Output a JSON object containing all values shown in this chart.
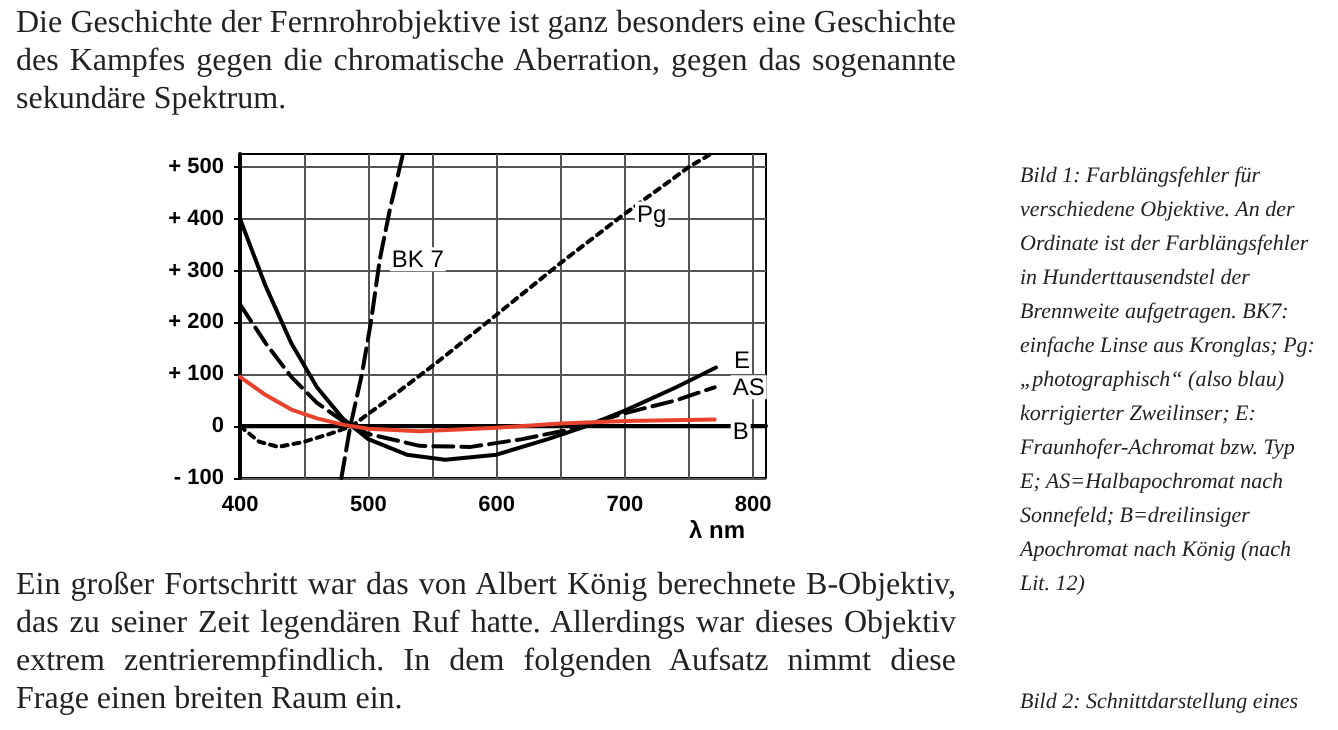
{
  "chart_data": {
    "type": "line",
    "xlabel": "λ nm",
    "xlim": [
      400,
      810
    ],
    "ylim": [
      -100,
      525
    ],
    "xticks": [
      400,
      {
        "value": 450,
        "label": null
      },
      500,
      {
        "value": 550,
        "label": null
      },
      600,
      {
        "value": 650,
        "label": null
      },
      700,
      {
        "value": 750,
        "label": null
      },
      800
    ],
    "yticks": [
      {
        "value": -100,
        "label": "- 100"
      },
      0,
      {
        "value": 100,
        "label": "+ 100"
      },
      {
        "value": 200,
        "label": "+ 200"
      },
      {
        "value": 300,
        "label": "+ 300"
      },
      {
        "value": 400,
        "label": "+ 400"
      },
      {
        "value": 500,
        "label": "+ 500"
      }
    ],
    "grid": true,
    "legend": false,
    "marker": "none",
    "series": [
      {
        "name": "BK 7",
        "color": "#000000",
        "line_style": "dashed",
        "x": [
          479,
          486,
          495,
          502,
          509,
          517,
          527
        ],
        "values": [
          -100,
          0,
          100,
          200,
          322,
          420,
          525
        ]
      },
      {
        "name": "Pg",
        "color": "#000000",
        "line_style": "dotted",
        "x": [
          400,
          415,
          430,
          450,
          470,
          487,
          520,
          552,
          600,
          650,
          700,
          750,
          767
        ],
        "values": [
          0,
          -30,
          -40,
          -30,
          -15,
          0,
          60,
          120,
          215,
          315,
          410,
          500,
          525
        ]
      },
      {
        "name": "E",
        "color": "#000000",
        "line_style": "solid",
        "x": [
          400,
          420,
          440,
          460,
          480,
          500,
          530,
          560,
          600,
          640,
          670,
          700,
          740,
          771
        ],
        "values": [
          400,
          270,
          160,
          75,
          15,
          -25,
          -55,
          -65,
          -55,
          -25,
          0,
          30,
          75,
          113
        ]
      },
      {
        "name": "AS",
        "color": "#000000",
        "line_style": "dashed",
        "x": [
          400,
          420,
          440,
          460,
          480,
          500,
          540,
          580,
          620,
          660,
          700,
          740,
          770
        ],
        "values": [
          235,
          160,
          95,
          45,
          10,
          -15,
          -38,
          -40,
          -25,
          -5,
          25,
          50,
          75
        ]
      },
      {
        "name": "B",
        "color": "#e8412c",
        "line_style": "solid",
        "x": [
          400,
          420,
          440,
          460,
          480,
          500,
          540,
          600,
          650,
          700,
          770
        ],
        "values": [
          95,
          60,
          32,
          15,
          3,
          -5,
          -10,
          -3,
          5,
          10,
          13
        ]
      }
    ],
    "annotations": [
      "Die Geschichte der Fernrohrobjektive ist ganz besonders eine Geschichte des Kampfes gegen die chromatische Aberration, gegen das sogenannte sekundäre Spektrum.",
      "Bild 1: Farblängsfehler für verschiedene Objektive. An der Ordinate ist der Farblängsfehler in Hunderttausendstel der Brennweite aufgetragen. BK7: einfache Linse aus Kronglas; Pg: „photographisch“ (also blau) korrigierter Zweilinser; E: Fraunhofer-Achromat bzw. Typ E; AS=Halbapochromat nach Sonnefeld; B=dreilinsiger Apochromat nach König (nach Lit. 12)",
      "Ein großer Fortschritt war das von Albert König berechnete B-Objektiv, das zu seiner Zeit legendären Ruf hatte. Allerdings war dieses Objektiv extrem zentrierempfindlich. In dem folgenden Aufsatz nimmt diese Frage einen breiten Raum ein.",
      "Bild 2: Schnittdarstellung eines"
    ]
  }
}
